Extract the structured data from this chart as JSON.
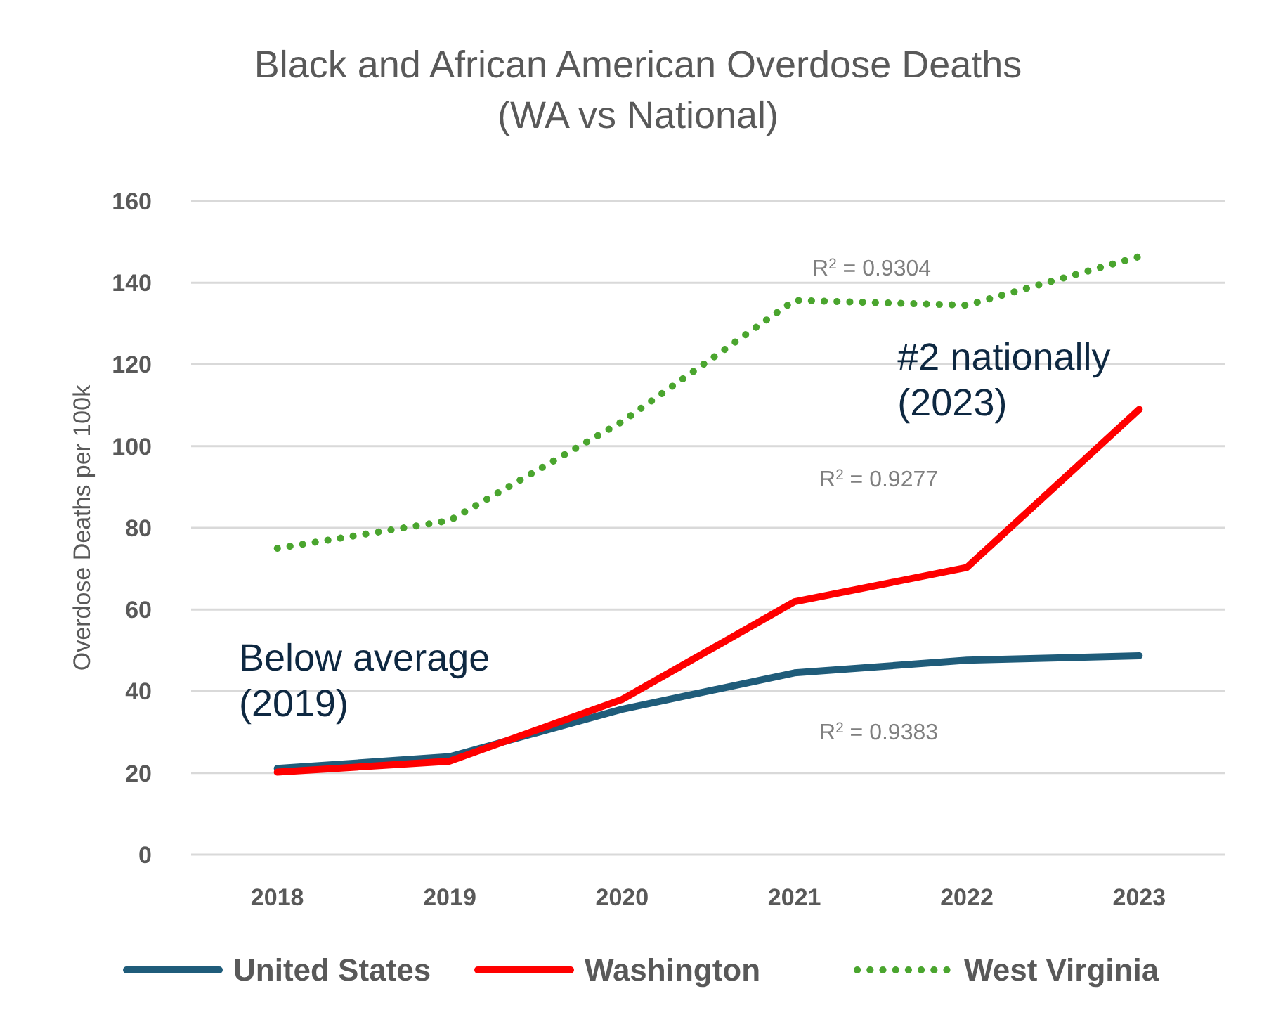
{
  "chart_data": {
    "type": "line",
    "title": "Black and African American Overdose Deaths\n(WA vs National)",
    "ylabel": "Overdose Deaths per 100k",
    "categories": [
      "2018",
      "2019",
      "2020",
      "2021",
      "2022",
      "2023"
    ],
    "series": [
      {
        "name": "United States",
        "color": "#1f5c7a",
        "values": [
          21.1,
          24,
          35.6,
          44.5,
          47.6,
          48.7
        ],
        "line_style": "solid"
      },
      {
        "name": "Washington",
        "color": "#ff0000",
        "values": [
          20.2,
          22.9,
          38,
          61.9,
          70.3,
          109
        ],
        "line_style": "solid"
      },
      {
        "name": "West Virginia",
        "color": "#4aa52e",
        "values": [
          75,
          81.8,
          106,
          135.7,
          134.5,
          146.4
        ],
        "line_style": "dotted"
      }
    ],
    "ylim": [
      0,
      160
    ],
    "yticks": [
      0,
      20,
      40,
      60,
      80,
      100,
      120,
      140,
      160
    ],
    "grid": "y",
    "legend": "bottom",
    "marker": "none",
    "annotations": [
      "R$^{2}$ = 0.9304",
      {
        "text": "#2 nationally\n(2023)",
        "x": "2023",
        "y": 109
      },
      "R$^{2}$ = 0.9277",
      {
        "text": "Below average\n(2019)",
        "x": "2019",
        "y": 23
      },
      "R$^{2}$ = 0.9383"
    ]
  }
}
